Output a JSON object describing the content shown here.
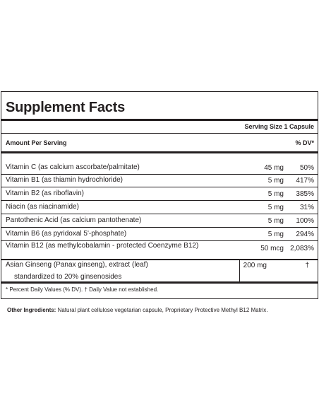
{
  "title": "Supplement Facts",
  "serving_size": "Serving Size 1 Capsule",
  "amount_per_serving": "Amount Per Serving",
  "dv_header": "% DV*",
  "nutrients": [
    {
      "name": "Vitamin C (as calcium ascorbate/palmitate)",
      "amount": "45 mg",
      "dv": "50%"
    },
    {
      "name": "Vitamin B1 (as thiamin hydrochloride)",
      "amount": "5 mg",
      "dv": "417%"
    },
    {
      "name": "Vitamin B2 (as riboflavin)",
      "amount": "5 mg",
      "dv": "385%"
    },
    {
      "name": "Niacin (as niacinamide)",
      "amount": "5 mg",
      "dv": "31%"
    },
    {
      "name": "Pantothenic Acid (as calcium pantothenate)",
      "amount": "5 mg",
      "dv": "100%"
    },
    {
      "name": "Vitamin B6 (as pyridoxal 5'-phosphate)",
      "amount": "5 mg",
      "dv": "294%"
    },
    {
      "name": "Vitamin B12 (as methylcobalamin - protected Coenzyme B12)",
      "amount": "50 mcg",
      "dv": "2,083%"
    }
  ],
  "ginseng": {
    "name": "Asian Ginseng (Panax ginseng), extract (leaf)",
    "sub": "standardized to 20% ginsenosides",
    "amount": "200 mg",
    "dv": "†"
  },
  "footnote": "* Percent Daily Values (% DV). † Daily Value not established.",
  "other_ingredients": {
    "label": "Other Ingredients:",
    "text": " Natural plant cellulose vegetarian capsule, Proprietary Protective Methyl B12 Matrix."
  }
}
